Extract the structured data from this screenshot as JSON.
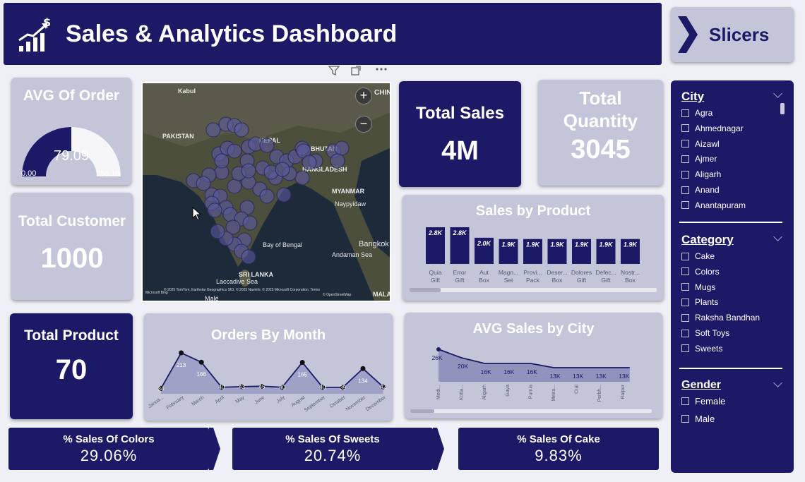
{
  "header": {
    "title": "Sales & Analytics Dashboard",
    "logo_icon": "chart-dollar-icon"
  },
  "slicer_button": {
    "label": "Slicers",
    "icon": "chevron-right-icon"
  },
  "avg_order": {
    "title": "AVG Of Order",
    "value": "79.09",
    "min": "0.00",
    "max": "158.18",
    "fill_fraction": 0.5
  },
  "total_customer": {
    "title": "Total Customer",
    "value": "1000"
  },
  "total_product": {
    "title": "Total Product",
    "value": "70"
  },
  "total_sales": {
    "title": "Total Sales",
    "value": "4M"
  },
  "total_quantity": {
    "title_line1": "Total",
    "title_line2": "Quantity",
    "value": "3045"
  },
  "map": {
    "labels": [
      "Kabul",
      "PAKISTAN",
      "NEPAL",
      "BHUTAN",
      "BANGLADESH",
      "MYANMAR",
      "Naypyidaw",
      "Bay of Bengal",
      "Andaman Sea",
      "Bangkok",
      "SRI LANKA",
      "Laccadive Sea",
      "Malé",
      "CHINA",
      "MALAY"
    ],
    "attribution": "© 2025 TomTom, Earthstar Geographics SIO, © 2025 Navinfo, © 2025 Microsoft Corporation, Terms",
    "attribution2": "© OpenStreetMap",
    "bing": "Microsoft Bing",
    "zoom_in": "+",
    "zoom_out": "−"
  },
  "chart_data": [
    {
      "type": "bar",
      "title": "Sales by Product",
      "categories": [
        "Quia Gift",
        "Error Gift",
        "Aut Box",
        "Magnam Set",
        "Provident Pack",
        "Deserunt Box",
        "Dolores Gift",
        "Defectus Gift",
        "Nostrum Box"
      ],
      "category_lines": [
        [
          "Quia",
          "Gift"
        ],
        [
          "Error",
          "Gift"
        ],
        [
          "Aut",
          "Box"
        ],
        [
          "Magn...",
          "Set"
        ],
        [
          "Provi...",
          "Pack"
        ],
        [
          "Deser...",
          "Box"
        ],
        [
          "Dolores",
          "Gift"
        ],
        [
          "Defec...",
          "Gift"
        ],
        [
          "Nostr...",
          "Box"
        ]
      ],
      "values": [
        2800,
        2800,
        2000,
        1900,
        1900,
        1900,
        1900,
        1900,
        1900
      ],
      "labels": [
        "2.8K",
        "2.8K",
        "2.0K",
        "1.9K",
        "1.9K",
        "1.9K",
        "1.9K",
        "1.9K",
        "1.9K"
      ],
      "ylim": [
        0,
        2800
      ]
    },
    {
      "type": "area",
      "title": "Orders By  Month",
      "categories": [
        "January",
        "February",
        "March",
        "April",
        "May",
        "June",
        "July",
        "August",
        "September",
        "October",
        "November",
        "December"
      ],
      "tick_labels": [
        "Janua...",
        "February",
        "March",
        "April",
        "May",
        "June",
        "July",
        "August",
        "September",
        "October",
        "November",
        "December"
      ],
      "values": [
        34,
        213,
        166,
        40,
        43,
        45,
        40,
        165,
        40,
        39,
        134,
        42
      ],
      "ylim": [
        0,
        213
      ]
    },
    {
      "type": "area",
      "title": "AVG Sales by City",
      "categories": [
        "Medi...",
        "Kotta...",
        "Aligarh",
        "Gaya",
        "Purnia",
        "Meira...",
        "Cral",
        "Perbh...",
        "Raipur"
      ],
      "values": [
        26000,
        20000,
        16000,
        16000,
        16000,
        13000,
        13000,
        13000,
        13000
      ],
      "labels": [
        "26K",
        "20K",
        "16K",
        "16K",
        "16K",
        "13K",
        "13K",
        "13K",
        "13K"
      ],
      "ylim": [
        0,
        26000
      ]
    }
  ],
  "pct_cards": [
    {
      "title": "% Sales Of Colors",
      "value": "29.06%"
    },
    {
      "title": "% Sales  Of Sweets",
      "value": "20.74%"
    },
    {
      "title": "% Sales Of Cake",
      "value": "9.83%"
    }
  ],
  "slicers": {
    "city": {
      "title": "City",
      "items": [
        "Agra",
        "Ahmednagar",
        "Aizawl",
        "Ajmer",
        "Aligarh",
        "Anand",
        "Anantapuram"
      ]
    },
    "category": {
      "title": "Category",
      "items": [
        "Cake",
        "Colors",
        "Mugs",
        "Plants",
        "Raksha Bandhan",
        "Soft Toys",
        "Sweets"
      ]
    },
    "gender": {
      "title": "Gender",
      "items": [
        "Female",
        "Male"
      ]
    }
  },
  "colors": {
    "navy": "#1c1a66",
    "panel": "#c3c6d8",
    "marker": "#5a5aa0"
  }
}
